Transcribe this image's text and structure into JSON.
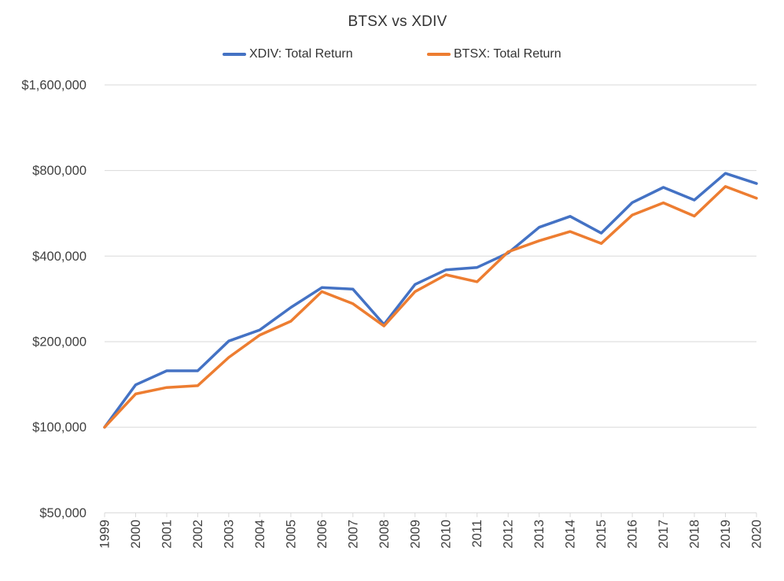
{
  "chart_data": {
    "type": "line",
    "title": "BTSX vs XDIV",
    "x": [
      "1999",
      "2000",
      "2001",
      "2002",
      "2003",
      "2004",
      "2005",
      "2006",
      "2007",
      "2008",
      "2009",
      "2010",
      "2011",
      "2012",
      "2013",
      "2014",
      "2015",
      "2016",
      "2017",
      "2018",
      "2019",
      "2020"
    ],
    "series": [
      {
        "name": "XDIV: Total Return",
        "color": "#4472C4",
        "values": [
          100000,
          141000,
          158000,
          158000,
          201000,
          220000,
          264000,
          310000,
          306000,
          230000,
          318000,
          358000,
          365000,
          410000,
          505000,
          552000,
          482000,
          617000,
          698000,
          630000,
          782000,
          720000
        ]
      },
      {
        "name": "BTSX: Total Return",
        "color": "#ED7D31",
        "values": [
          100000,
          131000,
          138000,
          140000,
          176000,
          211000,
          236000,
          300000,
          272000,
          227000,
          300000,
          344000,
          325000,
          414000,
          453000,
          488000,
          443000,
          558000,
          616000,
          553000,
          703000,
          639000
        ]
      }
    ],
    "y_axis": {
      "scale": "log-base-2",
      "min": 50000,
      "max": 1600000,
      "ticks": [
        50000,
        100000,
        200000,
        400000,
        800000,
        1600000
      ],
      "tick_labels": [
        "$50,000",
        "$100,000",
        "$200,000",
        "$400,000",
        "$800,000",
        "$1,600,000"
      ]
    },
    "x_axis": {
      "label_rotation_degrees": -90
    },
    "grid": true,
    "legend_position": "top",
    "colors": {
      "gridline": "#D9D9D9",
      "axis_text": "#404040",
      "title_text": "#333333"
    }
  }
}
